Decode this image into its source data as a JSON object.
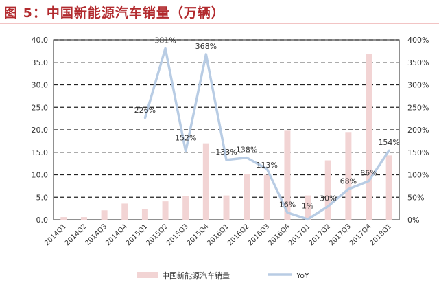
{
  "chart_data": {
    "type": "bar+line",
    "title": "图 5：中国新能源汽车销量（万辆）",
    "categories": [
      "2014Q1",
      "2014Q2",
      "2014Q3",
      "2014Q4",
      "2015Q1",
      "2015Q2",
      "2015Q3",
      "2015Q4",
      "2016Q1",
      "2016Q2",
      "2016Q3",
      "2016Q4",
      "2017Q1",
      "2017Q2",
      "2017Q3",
      "2017Q4",
      "2018Q1"
    ],
    "series": [
      {
        "name": "中国新能源汽车销量",
        "type": "bar",
        "axis": "left",
        "color": "#f2d4d4",
        "values": [
          0.6,
          0.6,
          2.1,
          3.6,
          2.3,
          4.1,
          5.2,
          17.0,
          5.4,
          10.2,
          10.0,
          19.8,
          5.4,
          13.2,
          19.5,
          36.8,
          14.3
        ]
      },
      {
        "name": "YoY",
        "type": "line",
        "axis": "right",
        "color": "#b8cce4",
        "values": [
          null,
          null,
          null,
          null,
          226,
          381,
          152,
          368,
          133,
          138,
          113,
          16,
          1,
          30,
          68,
          86,
          154
        ],
        "labels": [
          null,
          null,
          null,
          null,
          "226%",
          "381%",
          "152%",
          "368%",
          "133%",
          "138%",
          "113%",
          "16%",
          "1%",
          "30%",
          "68%",
          "86%",
          "154%"
        ]
      }
    ],
    "left_axis": {
      "ylim": [
        0,
        40
      ],
      "ticks": [
        "0.0",
        "5.0",
        "10.0",
        "15.0",
        "20.0",
        "25.0",
        "30.0",
        "35.0",
        "40.0"
      ]
    },
    "right_axis": {
      "ylim": [
        0,
        400
      ],
      "ticks": [
        "0%",
        "50%",
        "100%",
        "150%",
        "200%",
        "250%",
        "300%",
        "350%",
        "400%"
      ]
    },
    "grid": "dashed horizontal",
    "legend": "bottom"
  }
}
